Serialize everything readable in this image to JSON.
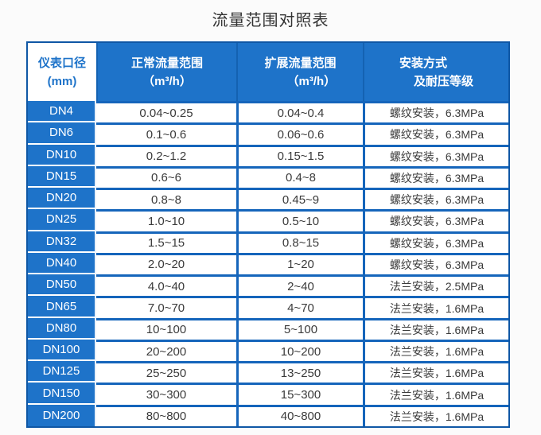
{
  "title": "流量范围对照表",
  "colors": {
    "primary_blue": "#1e73c9",
    "outer_border_blue": "#0f57a5",
    "separator_blue": "#1565bb",
    "header_separator_blue": "#1462b2",
    "header_first_cell_bg": "#ffffff",
    "header_text": "#ffffff",
    "cell_text": "#3b3b3b",
    "title_text": "#333333",
    "data_cell_bg": "#ffffff"
  },
  "chart_data": {
    "type": "table",
    "title": "流量范围对照表",
    "legend_position": "none",
    "grid": "on",
    "columns": [
      {
        "line1": "仪表口径",
        "line2": "(mm)"
      },
      {
        "line1": "正常流量范围",
        "line2": "（m³/h）"
      },
      {
        "line1": "扩展流量范围",
        "line2": "（m³/h）"
      },
      {
        "line1": "安装方式",
        "line2": "及耐压等级"
      }
    ],
    "rows": [
      {
        "dn": "DN4",
        "normal": "0.04~0.25",
        "extended": "0.04~0.4",
        "install": "螺纹安装，6.3MPa"
      },
      {
        "dn": "DN6",
        "normal": "0.1~0.6",
        "extended": "0.06~0.6",
        "install": "螺纹安装，6.3MPa"
      },
      {
        "dn": "DN10",
        "normal": "0.2~1.2",
        "extended": "0.15~1.5",
        "install": "螺纹安装，6.3MPa"
      },
      {
        "dn": "DN15",
        "normal": "0.6~6",
        "extended": "0.4~8",
        "install": "螺纹安装，6.3MPa"
      },
      {
        "dn": "DN20",
        "normal": "0.8~8",
        "extended": "0.45~9",
        "install": "螺纹安装，6.3MPa"
      },
      {
        "dn": "DN25",
        "normal": "1.0~10",
        "extended": "0.5~10",
        "install": "螺纹安装，6.3MPa"
      },
      {
        "dn": "DN32",
        "normal": "1.5~15",
        "extended": "0.8~15",
        "install": "螺纹安装，6.3MPa"
      },
      {
        "dn": "DN40",
        "normal": "2.0~20",
        "extended": "1~20",
        "install": "螺纹安装，6.3MPa"
      },
      {
        "dn": "DN50",
        "normal": "4.0~40",
        "extended": "2~40",
        "install": "法兰安装，2.5MPa"
      },
      {
        "dn": "DN65",
        "normal": "7.0~70",
        "extended": "4~70",
        "install": "法兰安装，1.6MPa"
      },
      {
        "dn": "DN80",
        "normal": "10~100",
        "extended": "5~100",
        "install": "法兰安装，1.6MPa"
      },
      {
        "dn": "DN100",
        "normal": "20~200",
        "extended": "10~200",
        "install": "法兰安装，1.6MPa"
      },
      {
        "dn": "DN125",
        "normal": "25~250",
        "extended": "13~250",
        "install": "法兰安装，1.6MPa"
      },
      {
        "dn": "DN150",
        "normal": "30~300",
        "extended": "15~300",
        "install": "法兰安装，1.6MPa"
      },
      {
        "dn": "DN200",
        "normal": "80~800",
        "extended": "40~800",
        "install": "法兰安装，1.6MPa"
      }
    ]
  }
}
